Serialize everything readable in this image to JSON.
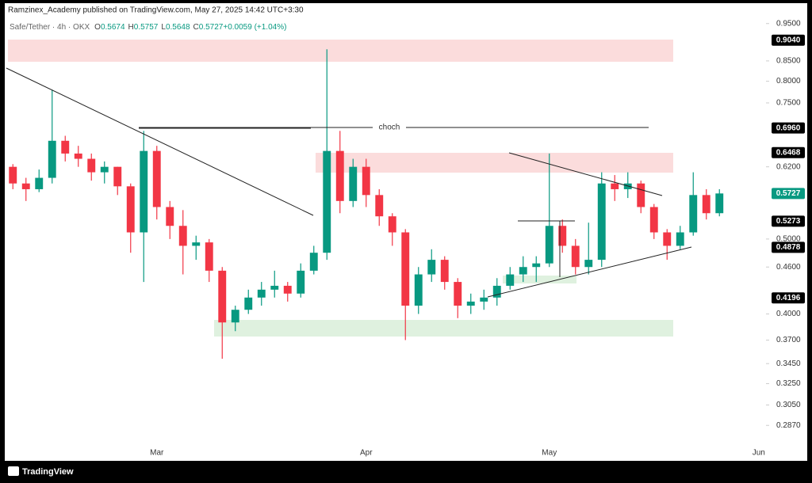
{
  "chart_data": {
    "type": "candlestick",
    "publisher_line": "Ramzinex_Academy published on TradingView.com, May 27, 2025 14:42 UTC+3:30",
    "symbol": "Safe/Tether · 4h · OKX",
    "ohlc_legend": [
      {
        "key": "O",
        "value": "0.5674"
      },
      {
        "key": "H",
        "value": "0.5757"
      },
      {
        "key": "L",
        "value": "0.5648"
      },
      {
        "key": "C",
        "value": "0.5727"
      },
      {
        "key": "",
        "value": "+0.0059 (+1.04%)"
      }
    ],
    "annotation": "choch",
    "footer": "TradingView",
    "log_scale": true,
    "grid": false,
    "up_color": "#089981",
    "down_color": "#f23645",
    "categories": [
      null,
      null,
      null,
      null,
      null,
      null,
      null,
      null,
      null,
      null,
      null,
      "Mar",
      null,
      null,
      null,
      null,
      null,
      null,
      null,
      null,
      null,
      null,
      null,
      null,
      null,
      null,
      null,
      "Apr",
      null,
      null,
      null,
      null,
      null,
      null,
      null,
      null,
      null,
      null,
      null,
      null,
      null,
      "May",
      null,
      null,
      null,
      null,
      null,
      null,
      null,
      null,
      null,
      null,
      null,
      null,
      null,
      null,
      null,
      "Jun"
    ],
    "series": [
      {
        "name": "open",
        "values": [
          0.62,
          0.59,
          0.58,
          0.6,
          0.67,
          0.645,
          0.635,
          0.61,
          0.62,
          0.585,
          0.51,
          0.65,
          0.55,
          0.52,
          0.49,
          0.495,
          0.455,
          0.39,
          0.405,
          0.42,
          0.43,
          0.435,
          0.425,
          0.455,
          0.48,
          0.65,
          0.56,
          0.62,
          0.57,
          0.535,
          0.51,
          0.41,
          0.45,
          0.47,
          0.44,
          0.41,
          0.415,
          0.42,
          0.435,
          0.45,
          0.46,
          0.465,
          0.52,
          0.49,
          0.46,
          0.47,
          0.59,
          0.58,
          0.59,
          0.55,
          0.51,
          0.49,
          0.51,
          0.57,
          0.54,
          null,
          null,
          null
        ]
      },
      {
        "name": "high",
        "values": [
          0.625,
          0.6,
          0.615,
          0.78,
          0.68,
          0.66,
          0.645,
          0.63,
          0.62,
          0.59,
          0.69,
          0.66,
          0.56,
          0.545,
          0.505,
          0.5,
          0.46,
          0.41,
          0.43,
          0.44,
          0.455,
          0.44,
          0.465,
          0.49,
          0.88,
          0.69,
          0.635,
          0.635,
          0.58,
          0.54,
          0.515,
          0.46,
          0.485,
          0.475,
          0.445,
          0.425,
          0.43,
          0.445,
          0.46,
          0.475,
          0.475,
          0.645,
          0.53,
          0.5,
          0.525,
          0.61,
          0.605,
          0.61,
          0.595,
          0.555,
          0.515,
          0.52,
          0.61,
          0.58,
          0.58,
          null,
          null,
          null
        ]
      },
      {
        "name": "low",
        "values": [
          0.58,
          0.56,
          0.575,
          0.59,
          0.63,
          0.62,
          0.595,
          0.59,
          0.57,
          0.48,
          0.44,
          0.53,
          0.5,
          0.45,
          0.47,
          0.44,
          0.35,
          0.38,
          0.4,
          0.41,
          0.42,
          0.415,
          0.42,
          0.45,
          0.47,
          0.54,
          0.55,
          0.55,
          0.52,
          0.49,
          0.37,
          0.4,
          0.44,
          0.43,
          0.395,
          0.4,
          0.405,
          0.41,
          0.43,
          0.44,
          0.44,
          0.46,
          0.48,
          0.45,
          0.45,
          0.46,
          0.56,
          0.565,
          0.54,
          0.5,
          0.47,
          0.485,
          0.505,
          0.53,
          0.535,
          null,
          null,
          null
        ]
      },
      {
        "name": "close",
        "values": [
          0.59,
          0.58,
          0.6,
          0.67,
          0.645,
          0.635,
          0.61,
          0.62,
          0.585,
          0.51,
          0.65,
          0.55,
          0.52,
          0.49,
          0.495,
          0.455,
          0.39,
          0.405,
          0.42,
          0.43,
          0.435,
          0.425,
          0.455,
          0.48,
          0.65,
          0.56,
          0.62,
          0.57,
          0.535,
          0.51,
          0.41,
          0.45,
          0.47,
          0.44,
          0.41,
          0.415,
          0.42,
          0.435,
          0.45,
          0.46,
          0.465,
          0.52,
          0.49,
          0.46,
          0.47,
          0.59,
          0.58,
          0.59,
          0.55,
          0.51,
          0.49,
          0.51,
          0.57,
          0.54,
          0.5727,
          null,
          null,
          null
        ]
      }
    ],
    "ylim": [
      0.272,
      1.0
    ],
    "yticks": [
      {
        "value": 0.95,
        "label": "0.9500"
      },
      {
        "value": 0.85,
        "label": "0.8500"
      },
      {
        "value": 0.8,
        "label": "0.8000"
      },
      {
        "value": 0.75,
        "label": "0.7500"
      },
      {
        "value": 0.62,
        "label": "0.6200"
      },
      {
        "value": 0.5,
        "label": "0.5000"
      },
      {
        "value": 0.46,
        "label": "0.4600"
      },
      {
        "value": 0.4,
        "label": "0.4000"
      },
      {
        "value": 0.37,
        "label": "0.3700"
      },
      {
        "value": 0.345,
        "label": "0.3450"
      },
      {
        "value": 0.325,
        "label": "0.3250"
      },
      {
        "value": 0.305,
        "label": "0.3050"
      },
      {
        "value": 0.287,
        "label": "0.2870"
      }
    ],
    "price_tags": [
      {
        "value": 0.904,
        "label": "0.9040",
        "color": "#000000"
      },
      {
        "value": 0.696,
        "label": "0.6960",
        "color": "#000000"
      },
      {
        "value": 0.6468,
        "label": "0.6468",
        "color": "#000000"
      },
      {
        "value": 0.5727,
        "label": "0.5727",
        "color": "#089981"
      },
      {
        "value": 0.5273,
        "label": "0.5273",
        "color": "#000000"
      },
      {
        "value": 0.4878,
        "label": "0.4878",
        "color": "#000000"
      },
      {
        "value": 0.4196,
        "label": "0.4196",
        "color": "#000000"
      }
    ]
  }
}
